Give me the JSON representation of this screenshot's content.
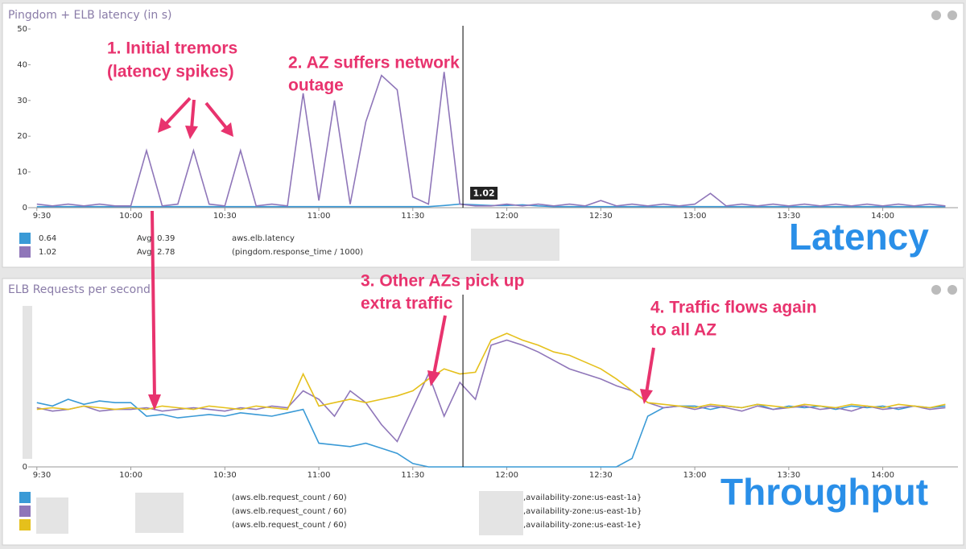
{
  "chart_data": [
    {
      "type": "line",
      "title": "Pingdom + ELB latency (in s)",
      "label": "Latency",
      "annotations": [
        {
          "lines": [
            "1. Initial tremors",
            "(latency spikes)"
          ]
        },
        {
          "lines": [
            "2. AZ suffers network",
            "outage"
          ]
        }
      ],
      "x": [
        "9:30",
        "9:35",
        "9:40",
        "9:45",
        "9:50",
        "9:55",
        "10:00",
        "10:05",
        "10:10",
        "10:15",
        "10:20",
        "10:25",
        "10:30",
        "10:35",
        "10:40",
        "10:45",
        "10:50",
        "10:55",
        "11:00",
        "11:05",
        "11:10",
        "11:15",
        "11:20",
        "11:25",
        "11:30",
        "11:35",
        "11:40",
        "11:45",
        "11:50",
        "11:55",
        "12:00",
        "12:05",
        "12:10",
        "12:15",
        "12:20",
        "12:25",
        "12:30",
        "12:35",
        "12:40",
        "12:45",
        "12:50",
        "12:55",
        "13:00",
        "13:05",
        "13:10",
        "13:15",
        "13:20",
        "13:25",
        "13:30",
        "13:35",
        "13:40",
        "13:45",
        "13:50",
        "13:55",
        "14:00",
        "14:05",
        "14:10",
        "14:15",
        "14:20"
      ],
      "xlim": [
        "9:28",
        "14:24"
      ],
      "xticks": [
        "9:30",
        "10:00",
        "10:30",
        "11:00",
        "11:30",
        "12:00",
        "12:30",
        "13:00",
        "13:30",
        "14:00"
      ],
      "ylim": [
        0,
        50
      ],
      "yticks": [
        0,
        10,
        20,
        30,
        40,
        50
      ],
      "cursor": {
        "x": "11:46",
        "label": "1.02"
      },
      "series": [
        {
          "name": "aws.elb.latency",
          "color": "#3a9ad6",
          "current": "0.64",
          "average": "Avg: 0.39",
          "values": [
            0.3,
            0.3,
            0.3,
            0.3,
            0.3,
            0.3,
            0.3,
            0.3,
            0.3,
            0.3,
            0.3,
            0.3,
            0.3,
            0.3,
            0.3,
            0.3,
            0.3,
            0.3,
            0.3,
            0.3,
            0.3,
            0.3,
            0.3,
            0.3,
            0.3,
            0.3,
            0.6,
            1,
            0.8,
            0.6,
            0.6,
            0.8,
            0.5,
            0.3,
            0.3,
            0.3,
            0.3,
            0.3,
            0.3,
            0.3,
            0.3,
            0.3,
            0.3,
            0.3,
            0.3,
            0.3,
            0.3,
            0.3,
            0.3,
            0.3,
            0.3,
            0.3,
            0.3,
            0.3,
            0.3,
            0.3,
            0.3,
            0.3,
            0.3
          ]
        },
        {
          "name": "(pingdom.response_time / 1000)",
          "color": "#8f76b9",
          "current": "1.02",
          "average": "Avg: 2.78",
          "values": [
            1,
            0.5,
            1,
            0.5,
            1,
            0.5,
            0.5,
            16,
            0.5,
            1,
            16,
            1,
            0.5,
            16,
            0.5,
            1,
            0.5,
            32,
            2,
            30,
            1,
            24,
            37,
            33,
            3,
            1,
            38,
            1,
            0.5,
            0.5,
            1,
            0.5,
            1,
            0.5,
            1,
            0.5,
            2,
            0.5,
            1,
            0.5,
            1,
            0.5,
            1,
            4,
            0.5,
            1,
            0.5,
            1,
            0.5,
            1,
            0.5,
            1,
            0.5,
            1,
            0.5,
            1,
            0.5,
            1,
            0.5
          ]
        }
      ]
    },
    {
      "type": "line",
      "title": "ELB Requests per second",
      "label": "Throughput",
      "annotations": [
        {
          "lines": [
            "3. Other AZs pick up",
            "extra traffic"
          ]
        },
        {
          "lines": [
            "4. Traffic flows again",
            "to all AZ"
          ]
        }
      ],
      "x": [
        "9:30",
        "9:35",
        "9:40",
        "9:45",
        "9:50",
        "9:55",
        "10:00",
        "10:05",
        "10:10",
        "10:15",
        "10:20",
        "10:25",
        "10:30",
        "10:35",
        "10:40",
        "10:45",
        "10:50",
        "10:55",
        "11:00",
        "11:05",
        "11:10",
        "11:15",
        "11:20",
        "11:25",
        "11:30",
        "11:35",
        "11:40",
        "11:45",
        "11:50",
        "11:55",
        "12:00",
        "12:05",
        "12:10",
        "12:15",
        "12:20",
        "12:25",
        "12:30",
        "12:35",
        "12:40",
        "12:45",
        "12:50",
        "12:55",
        "13:00",
        "13:05",
        "13:10",
        "13:15",
        "13:20",
        "13:25",
        "13:30",
        "13:35",
        "13:40",
        "13:45",
        "13:50",
        "13:55",
        "14:00",
        "14:05",
        "14:10",
        "14:15",
        "14:20"
      ],
      "xlim": [
        "9:28",
        "14:24"
      ],
      "xticks": [
        "9:30",
        "10:00",
        "10:30",
        "11:00",
        "11:30",
        "12:00",
        "12:30",
        "13:00",
        "13:30",
        "14:00"
      ],
      "ylim": [
        0,
        100
      ],
      "yticks": [
        0
      ],
      "cursor": {
        "x": "11:46"
      },
      "series": [
        {
          "name": "(aws.elb.request_count / 60)",
          "tags": ",availability-zone:us-east-1a}",
          "color": "#3a9ad6",
          "values": [
            38,
            36,
            40,
            37,
            39,
            38,
            38,
            30,
            31,
            29,
            30,
            31,
            30,
            32,
            31,
            30,
            32,
            34,
            14,
            13,
            12,
            14,
            11,
            8,
            2,
            0,
            0,
            0,
            0,
            0,
            0,
            0,
            0,
            0,
            0,
            0,
            0,
            0,
            5,
            30,
            35,
            36,
            36,
            34,
            36,
            35,
            37,
            34,
            36,
            35,
            36,
            34,
            36,
            35,
            36,
            34,
            36,
            35,
            36
          ]
        },
        {
          "name": "(aws.elb.request_count / 60)",
          "tags": ",availability-zone:us-east-1b}",
          "color": "#8f76b9",
          "values": [
            35,
            33,
            34,
            36,
            33,
            34,
            34,
            35,
            33,
            34,
            35,
            34,
            33,
            35,
            34,
            36,
            35,
            45,
            40,
            30,
            45,
            38,
            25,
            15,
            35,
            55,
            30,
            50,
            40,
            72,
            75,
            72,
            68,
            63,
            58,
            55,
            52,
            48,
            45,
            38,
            35,
            36,
            34,
            36,
            35,
            33,
            36,
            34,
            35,
            36,
            34,
            35,
            33,
            36,
            34,
            35,
            36,
            34,
            35
          ]
        },
        {
          "name": "(aws.elb.request_count / 60)",
          "tags": ",availability-zone:us-east-1e}",
          "color": "#e5c01c",
          "values": [
            34,
            35,
            34,
            36,
            35,
            34,
            35,
            34,
            36,
            35,
            34,
            36,
            35,
            34,
            36,
            35,
            34,
            55,
            36,
            38,
            40,
            38,
            40,
            42,
            45,
            52,
            58,
            55,
            56,
            75,
            79,
            75,
            72,
            68,
            66,
            62,
            58,
            52,
            45,
            38,
            37,
            36,
            35,
            37,
            36,
            35,
            37,
            36,
            35,
            37,
            36,
            35,
            37,
            36,
            35,
            37,
            36,
            35,
            37
          ]
        }
      ]
    }
  ]
}
